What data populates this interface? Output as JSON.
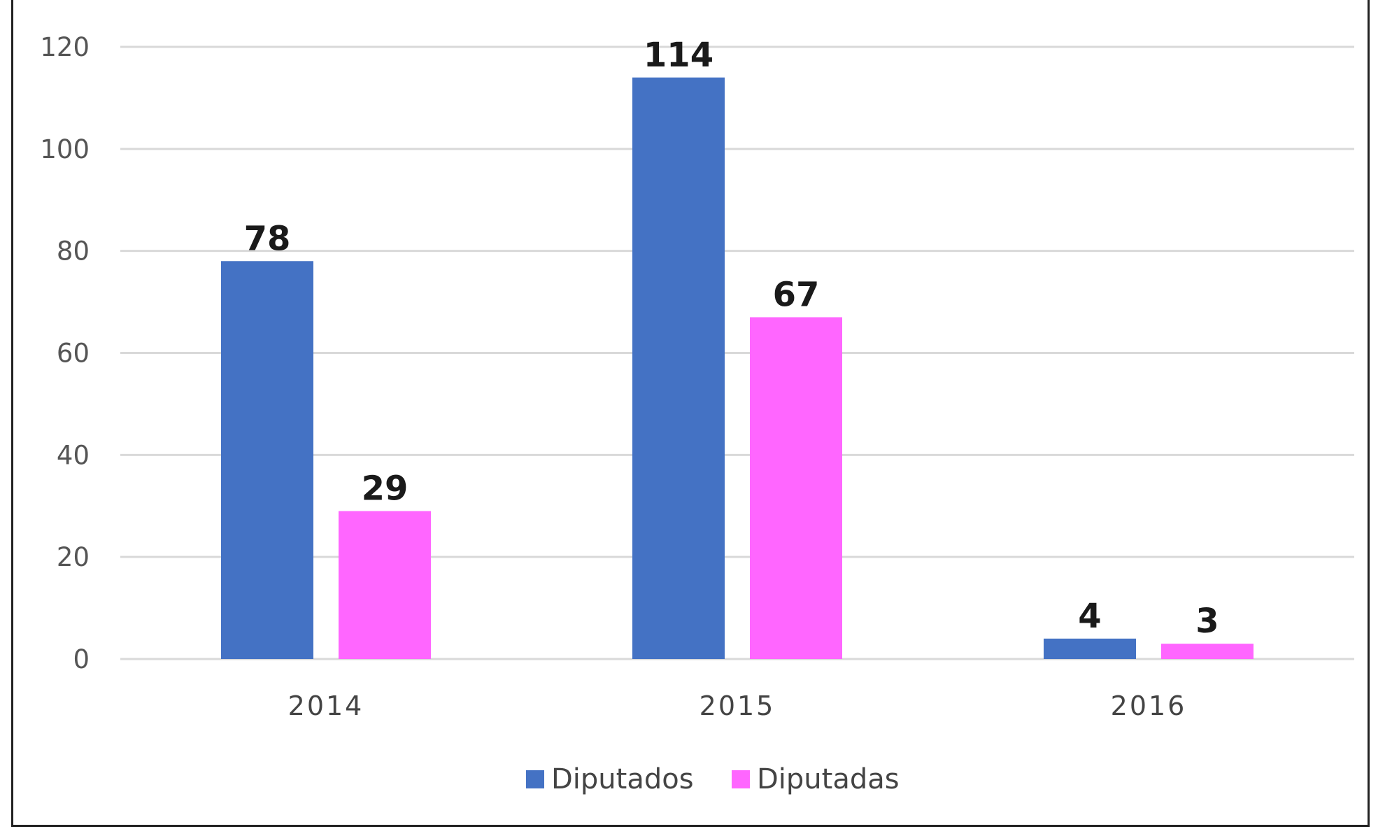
{
  "chart_data": {
    "type": "bar",
    "categories": [
      "2014",
      "2015",
      "2016"
    ],
    "series": [
      {
        "name": "Diputados",
        "values": [
          78,
          114,
          4
        ],
        "color": "#4472c4"
      },
      {
        "name": "Diputadas",
        "values": [
          29,
          67,
          3
        ],
        "color": "#ff66ff"
      }
    ],
    "title": "",
    "xlabel": "",
    "ylabel": "",
    "ylim": [
      0,
      120
    ],
    "yticks": [
      "0",
      "20",
      "40",
      "60",
      "80",
      "100",
      "120"
    ],
    "grid": true,
    "legend_position": "bottom-center"
  }
}
